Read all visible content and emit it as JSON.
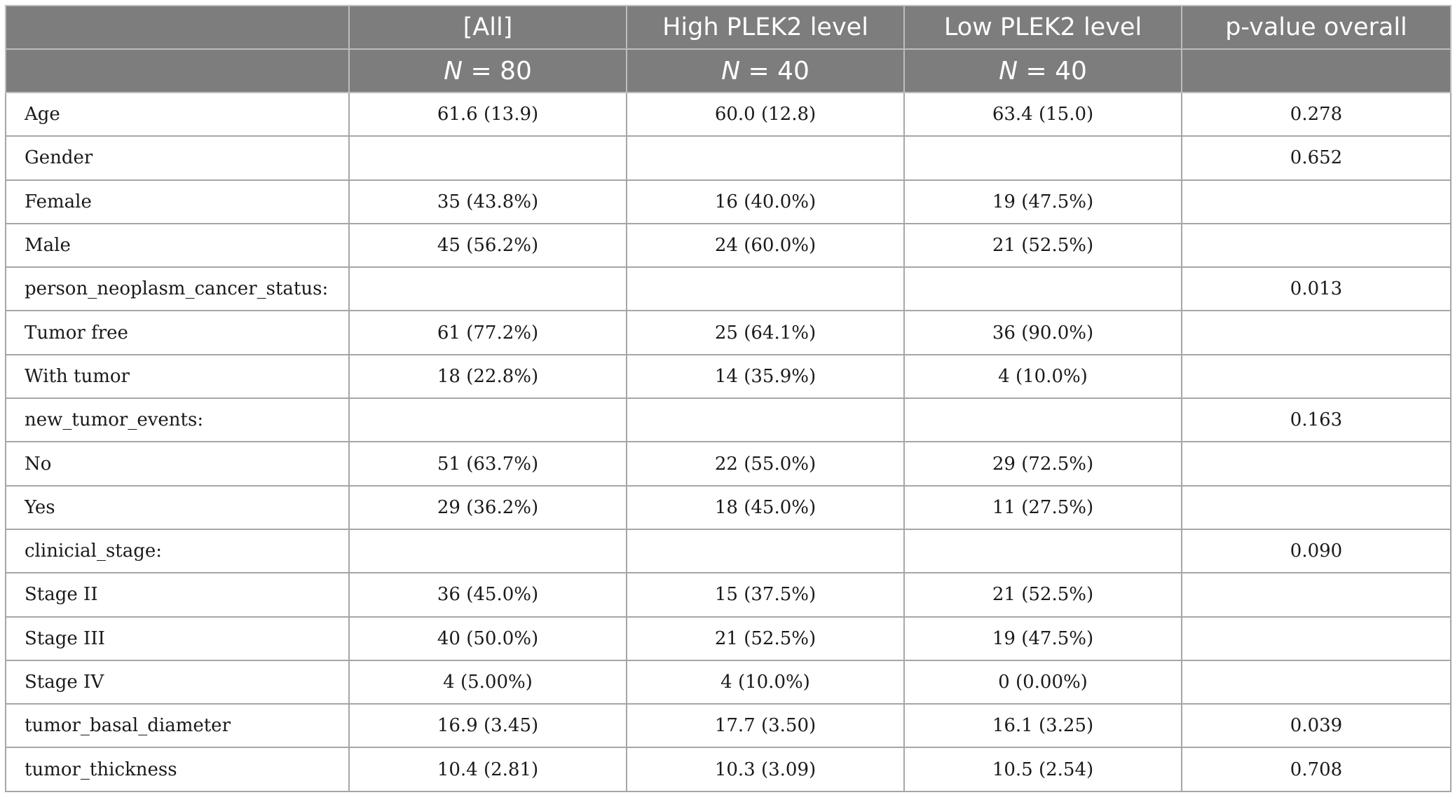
{
  "header": {
    "columns": [
      "",
      "[All]",
      "High PLEK2 level",
      "Low PLEK2 level",
      "p-value overall"
    ],
    "n_label": "N",
    "n_values": [
      "",
      "= 80",
      "= 40",
      "= 40",
      ""
    ]
  },
  "rows": [
    {
      "label": "Age",
      "all": "61.6 (13.9)",
      "high": "60.0 (12.8)",
      "low": "63.4 (15.0)",
      "p": "0.278"
    },
    {
      "label": "Gender",
      "all": "",
      "high": "",
      "low": "",
      "p": "0.652"
    },
    {
      "label": "Female",
      "all": "35 (43.8%)",
      "high": "16 (40.0%)",
      "low": "19 (47.5%)",
      "p": ""
    },
    {
      "label": "Male",
      "all": "45 (56.2%)",
      "high": "24 (60.0%)",
      "low": "21 (52.5%)",
      "p": ""
    },
    {
      "label": "person_neoplasm_cancer_status:",
      "all": "",
      "high": "",
      "low": "",
      "p": "0.013"
    },
    {
      "label": "Tumor free",
      "all": "61 (77.2%)",
      "high": "25 (64.1%)",
      "low": "36 (90.0%)",
      "p": ""
    },
    {
      "label": "With tumor",
      "all": "18 (22.8%)",
      "high": "14 (35.9%)",
      "low": "4 (10.0%)",
      "p": ""
    },
    {
      "label": "new_tumor_events:",
      "all": "",
      "high": "",
      "low": "",
      "p": "0.163"
    },
    {
      "label": "No",
      "all": "51 (63.7%)",
      "high": "22 (55.0%)",
      "low": "29 (72.5%)",
      "p": ""
    },
    {
      "label": "Yes",
      "all": "29 (36.2%)",
      "high": "18 (45.0%)",
      "low": "11 (27.5%)",
      "p": ""
    },
    {
      "label": "clinicial_stage:",
      "all": "",
      "high": "",
      "low": "",
      "p": "0.090"
    },
    {
      "label": "Stage II",
      "all": "36 (45.0%)",
      "high": "15 (37.5%)",
      "low": "21 (52.5%)",
      "p": ""
    },
    {
      "label": "Stage III",
      "all": "40 (50.0%)",
      "high": "21 (52.5%)",
      "low": "19 (47.5%)",
      "p": ""
    },
    {
      "label": "Stage IV",
      "all": "4 (5.00%)",
      "high": "4 (10.0%)",
      "low": "0 (0.00%)",
      "p": ""
    },
    {
      "label": "tumor_basal_diameter",
      "all": "16.9 (3.45)",
      "high": "17.7 (3.50)",
      "low": "16.1 (3.25)",
      "p": "0.039"
    },
    {
      "label": "tumor_thickness",
      "all": "10.4 (2.81)",
      "high": "10.3 (3.09)",
      "low": "10.5 (2.54)",
      "p": "0.708"
    }
  ]
}
